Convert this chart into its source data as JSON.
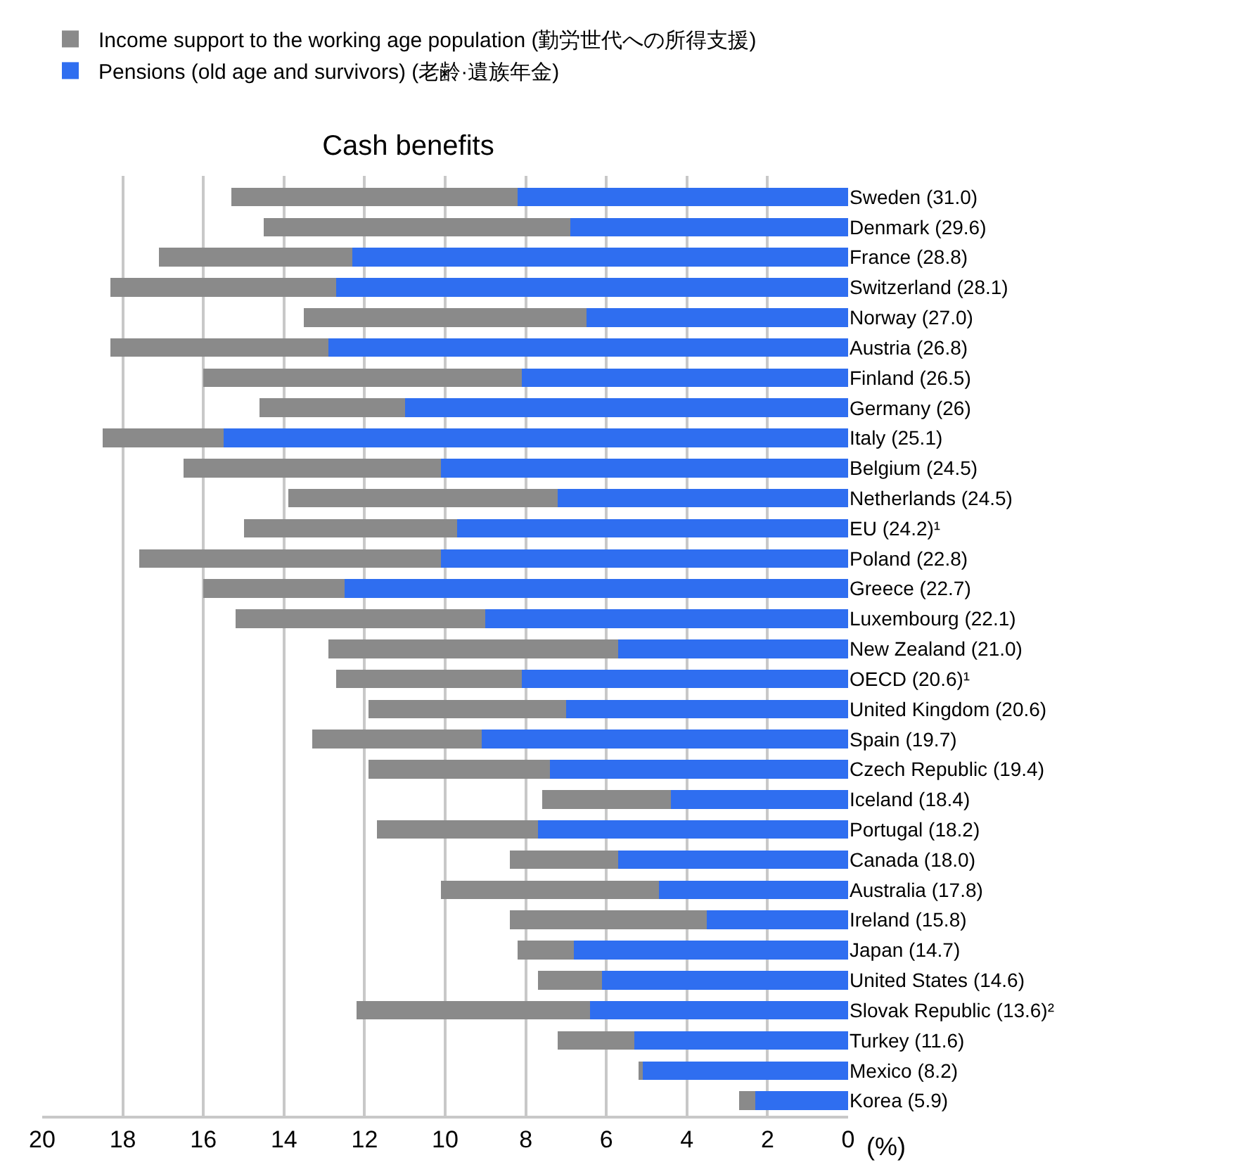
{
  "chart_data": {
    "type": "bar",
    "orientation": "horizontal",
    "stacked": true,
    "title": "Cash benefits",
    "xlabel": "(%)",
    "categories": [
      "Sweden (31.0)",
      "Denmark (29.6)",
      "France (28.8)",
      "Switzerland (28.1)",
      "Norway (27.0)",
      "Austria (26.8)",
      "Finland (26.5)",
      "Germany (26)",
      "Italy (25.1)",
      "Belgium (24.5)",
      "Netherlands (24.5)",
      "EU (24.2)¹",
      "Poland (22.8)",
      "Greece (22.7)",
      "Luxembourg (22.1)",
      "New Zealand (21.0)",
      "OECD (20.6)¹",
      "United Kingdom (20.6)",
      "Spain (19.7)",
      "Czech Republic (19.4)",
      "Iceland (18.4)",
      "Portugal (18.2)",
      "Canada (18.0)",
      "Australia (17.8)",
      "Ireland (15.8)",
      "Japan (14.7)",
      "United States (14.6)",
      "Slovak Republic (13.6)²",
      "Turkey (11.6)",
      "Mexico (8.2)",
      "Korea (5.9)"
    ],
    "series": [
      {
        "name": "Pensions (old age and survivors) (老齢·遺族年金)",
        "color": "#2f6ef0",
        "values": [
          8.2,
          6.9,
          12.3,
          12.7,
          6.5,
          12.9,
          8.1,
          11.0,
          15.5,
          10.1,
          7.2,
          9.7,
          10.1,
          12.5,
          9.0,
          5.7,
          8.1,
          7.0,
          9.1,
          7.4,
          4.4,
          7.7,
          5.7,
          4.7,
          3.5,
          6.8,
          6.1,
          6.4,
          5.3,
          5.1,
          2.3
        ]
      },
      {
        "name": "Income support to the working age population (勤労世代への所得支援)",
        "color": "#8a8a8a",
        "values": [
          7.1,
          7.6,
          4.8,
          5.6,
          7.0,
          5.4,
          7.9,
          3.6,
          3.0,
          6.4,
          6.7,
          5.3,
          7.5,
          3.5,
          6.2,
          7.2,
          4.6,
          4.9,
          4.2,
          4.5,
          3.2,
          4.0,
          2.7,
          5.4,
          4.9,
          1.4,
          1.6,
          5.8,
          1.9,
          0.1,
          0.4
        ]
      }
    ],
    "xlim": [
      20,
      0
    ],
    "xticks": [
      20,
      18,
      16,
      14,
      12,
      10,
      8,
      6,
      4,
      2,
      0
    ],
    "grid": "x",
    "legend": "top left"
  }
}
